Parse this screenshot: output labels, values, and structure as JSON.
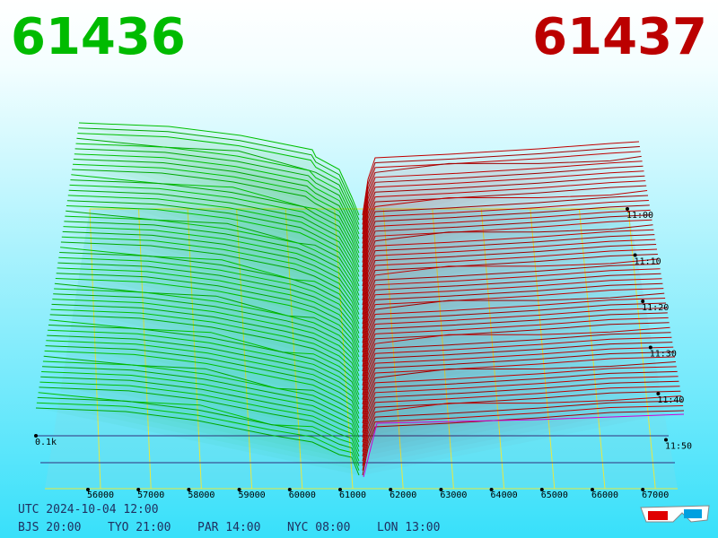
{
  "header": {
    "bid": "61436",
    "ask": "61437"
  },
  "price_labels": [
    "56000",
    "57000",
    "58000",
    "59000",
    "60000",
    "61000",
    "62000",
    "63000",
    "64000",
    "65000",
    "66000",
    "67000"
  ],
  "time_labels": [
    "11:00",
    "11:10",
    "11:20",
    "11:30",
    "11:40",
    "11:50"
  ],
  "depth_label": "0.1k",
  "footer": {
    "utc": "UTC 2024-10-04 12:00",
    "zones": [
      "BJS 20:00",
      "TYO 21:00",
      "PAR 14:00",
      "NYC 08:00",
      "LON 13:00"
    ]
  }
}
